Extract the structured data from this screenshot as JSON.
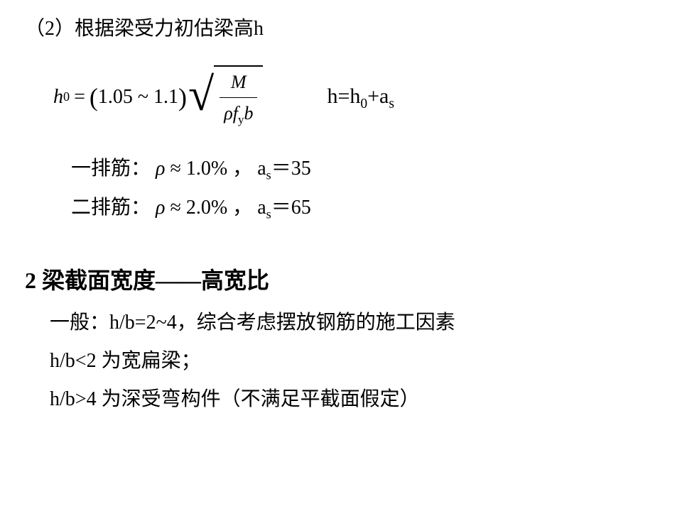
{
  "line1": "（2）根据梁受力初估梁高h",
  "formula": {
    "lhs_var": "h",
    "lhs_sub": "0",
    "equals": "=",
    "lparen": "(",
    "range": "1.05 ~ 1.1",
    "rparen": ")",
    "numerator": "M",
    "den_rho": "ρ",
    "den_f": "f",
    "den_fsub": "y",
    "den_b": "b"
  },
  "rhs": {
    "text1": "h=h",
    "sub1": "0",
    "text2": "+a",
    "sub2": "s"
  },
  "row1": {
    "label": "一排筋：",
    "rho": "ρ",
    "approx": "≈",
    "val": "1.0%",
    "comma": "，",
    "avar": "a",
    "asub": "s",
    "eq": "＝",
    "aval": "35"
  },
  "row2": {
    "label": "二排筋：",
    "rho": "ρ",
    "approx": "≈",
    "val": "2.0%",
    "comma": "，",
    "avar": "a",
    "asub": "s",
    "eq": "＝",
    "aval": "65"
  },
  "section2": {
    "title": "2 梁截面宽度——高宽比",
    "p1": "一般：h/b=2~4，综合考虑摆放钢筋的施工因素",
    "p2": "h/b<2 为宽扁梁；",
    "p3": "h/b>4 为深受弯构件（不满足平截面假定）"
  }
}
